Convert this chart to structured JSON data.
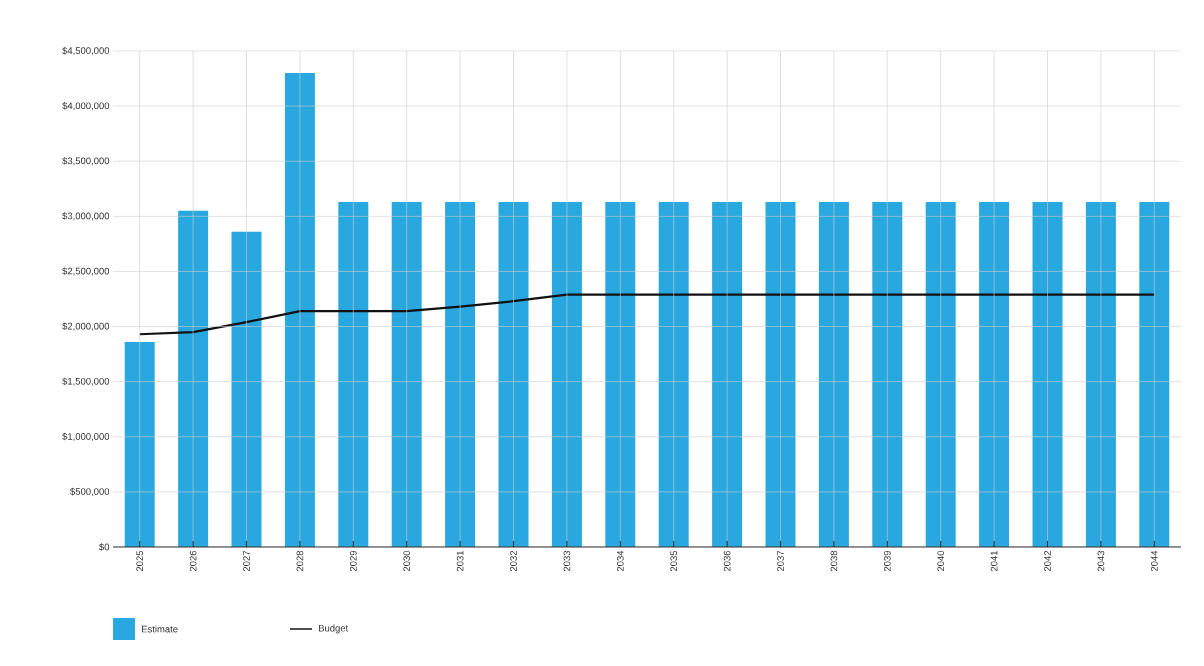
{
  "chart_data": {
    "type": "bar",
    "categories": [
      "2025",
      "2026",
      "2027",
      "2028",
      "2029",
      "2030",
      "2031",
      "2032",
      "2033",
      "2034",
      "2035",
      "2036",
      "2037",
      "2038",
      "2039",
      "2040",
      "2041",
      "2042",
      "2043",
      "2044"
    ],
    "series": [
      {
        "name": "Estimate",
        "color": "#29a8e0",
        "values": [
          1860000,
          3050000,
          2860000,
          4300000,
          3130000,
          3130000,
          3130000,
          3130000,
          3130000,
          3130000,
          3130000,
          3130000,
          3130000,
          3130000,
          3130000,
          3130000,
          3130000,
          3130000,
          3130000,
          3130000
        ]
      },
      {
        "name": "Budget",
        "type": "line",
        "color": "#111111",
        "values": [
          1930000,
          1950000,
          2040000,
          2140000,
          2140000,
          2140000,
          2180000,
          2230000,
          2290000,
          2290000,
          2290000,
          2290000,
          2290000,
          2290000,
          2290000,
          2290000,
          2290000,
          2290000,
          2290000,
          2290000
        ]
      }
    ],
    "ylim": [
      0,
      4500000
    ],
    "yticks": [
      {
        "value": 0,
        "label": "$0"
      },
      {
        "value": 500000,
        "label": "$500,000"
      },
      {
        "value": 1000000,
        "label": "$1,000,000"
      },
      {
        "value": 1500000,
        "label": "$1,500,000"
      },
      {
        "value": 2000000,
        "label": "$2,000,000"
      },
      {
        "value": 2500000,
        "label": "$2,500,000"
      },
      {
        "value": 3000000,
        "label": "$3,000,000"
      },
      {
        "value": 3500000,
        "label": "$3,500,000"
      },
      {
        "value": 4000000,
        "label": "$4,000,000"
      },
      {
        "value": 4500000,
        "label": "$4,500,000"
      }
    ],
    "grid": true,
    "legend": "bottom left",
    "marker": "none"
  }
}
